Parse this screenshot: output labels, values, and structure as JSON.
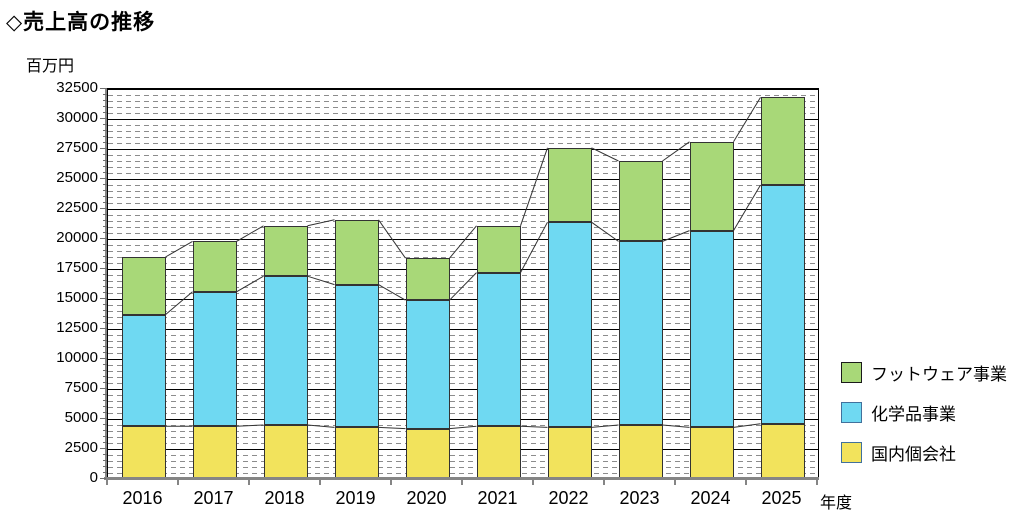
{
  "title": "◇売上高の推移",
  "y_axis": {
    "unit_label": "百万円",
    "tick_labels": [
      "0",
      "2500",
      "5000",
      "7500",
      "10000",
      "12500",
      "15000",
      "17500",
      "20000",
      "22500",
      "25000",
      "27500",
      "30000",
      "32500"
    ]
  },
  "x_axis": {
    "label": "年度",
    "tick_labels": [
      "2016",
      "2017",
      "2018",
      "2019",
      "2020",
      "2021",
      "2022",
      "2023",
      "2024",
      "2025"
    ]
  },
  "legend": {
    "position": "right",
    "items": [
      {
        "label": "フットウェア事業",
        "color": "#A8D878",
        "border": "#1a1a1a"
      },
      {
        "label": "化学品事業",
        "color": "#6FD9F2",
        "border": "#41719C"
      },
      {
        "label": "国内個会社",
        "color": "#F2E35C",
        "border": "#41719C"
      }
    ]
  },
  "colors": {
    "footwear_green": "#A8D878",
    "chemicals_blue": "#6FD9F2",
    "domestic_yellow": "#F2E35C",
    "major_grid": "#000000",
    "minor_grid": "#8c8c8c",
    "axis": "#858585",
    "bar_border": "#333333",
    "series_line": "#333333"
  },
  "chart_data": {
    "type": "bar",
    "stacked": true,
    "title": "◇売上高の推移",
    "ylabel": "百万円",
    "xlabel": "年度",
    "categories": [
      "2016",
      "2017",
      "2018",
      "2019",
      "2020",
      "2021",
      "2022",
      "2023",
      "2024",
      "2025"
    ],
    "series": [
      {
        "name": "国内個会社",
        "color": "#F2E35C",
        "values": [
          4400,
          4400,
          4500,
          4300,
          4200,
          4400,
          4300,
          4500,
          4300,
          4600
        ]
      },
      {
        "name": "化学品事業",
        "color": "#6FD9F2",
        "values": [
          9300,
          11200,
          12400,
          11900,
          10700,
          12800,
          17100,
          15300,
          16400,
          19900
        ]
      },
      {
        "name": "フットウェア事業",
        "color": "#A8D878",
        "values": [
          4800,
          4200,
          4200,
          5400,
          3500,
          3900,
          6200,
          6700,
          7400,
          7300
        ]
      }
    ],
    "totals": [
      18500,
      19800,
      21100,
      21600,
      18400,
      21100,
      27600,
      26500,
      28100,
      31800
    ],
    "ylim": [
      0,
      32500
    ],
    "y_major_step": 2500,
    "y_minor_step": 500,
    "grid": "major-solid-minor-dashed",
    "series_lines": true,
    "legend_position": "right",
    "legend_order_top_to_bottom": [
      "フットウェア事業",
      "化学品事業",
      "国内個会社"
    ]
  }
}
